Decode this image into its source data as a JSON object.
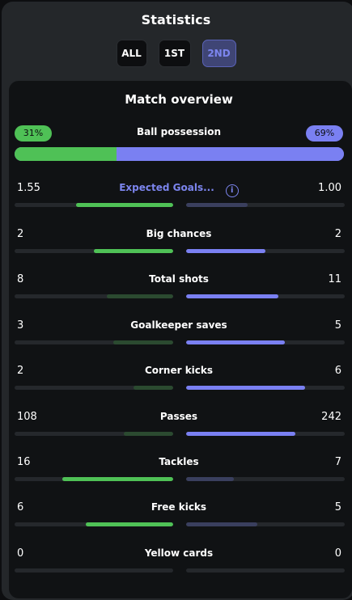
{
  "header": {
    "title": "Statistics"
  },
  "tabs": [
    {
      "label": "ALL",
      "active": false
    },
    {
      "label": "1ST",
      "active": false
    },
    {
      "label": "2ND",
      "active": true
    }
  ],
  "overview": {
    "title": "Match overview",
    "possession": {
      "label": "Ball possession",
      "home": "31%",
      "away": "69%",
      "home_share": 0.31
    }
  },
  "stats": [
    {
      "label": "Expected Goals...",
      "home": "1.55",
      "away": "1.00",
      "home_share": 0.61,
      "away_share": 0.39,
      "home_winner": true,
      "info": true
    },
    {
      "label": "Big chances",
      "home": "2",
      "away": "2",
      "home_share": 0.5,
      "away_share": 0.5,
      "home_winner": true,
      "away_winner": true
    },
    {
      "label": "Total shots",
      "home": "8",
      "away": "11",
      "home_share": 0.42,
      "away_share": 0.58,
      "away_winner": true
    },
    {
      "label": "Goalkeeper saves",
      "home": "3",
      "away": "5",
      "home_share": 0.38,
      "away_share": 0.62,
      "away_winner": true
    },
    {
      "label": "Corner kicks",
      "home": "2",
      "away": "6",
      "home_share": 0.25,
      "away_share": 0.75,
      "away_winner": true
    },
    {
      "label": "Passes",
      "home": "108",
      "away": "242",
      "home_share": 0.31,
      "away_share": 0.69,
      "away_winner": true
    },
    {
      "label": "Tackles",
      "home": "16",
      "away": "7",
      "home_share": 0.7,
      "away_share": 0.3,
      "home_winner": true
    },
    {
      "label": "Free kicks",
      "home": "6",
      "away": "5",
      "home_share": 0.55,
      "away_share": 0.45,
      "home_winner": true
    },
    {
      "label": "Yellow cards",
      "home": "0",
      "away": "0",
      "home_share": 0,
      "away_share": 0
    }
  ],
  "colors": {
    "home": "#4fc156",
    "home_dim": "#2b4a30",
    "away": "#7a80f2",
    "away_dim": "#3a3f5e"
  },
  "icons": {
    "info": "info-circle-icon"
  }
}
